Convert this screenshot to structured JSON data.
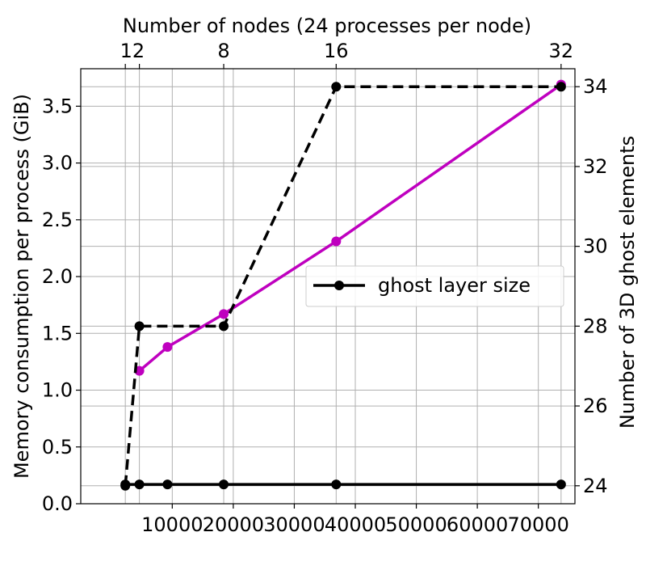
{
  "chart_data": {
    "type": "line",
    "xlabel": "",
    "ylabel_left": "Memory consumption per process (GiB)",
    "ylabel_right": "Number of 3D ghost elements",
    "xlabel_top": "Number of nodes (24 processes per node)",
    "xlim": [
      -5000,
      76000
    ],
    "ylim_left": [
      0.0,
      3.83
    ],
    "ylim_right": [
      23.55,
      34.45
    ],
    "x_ticks": [
      10000,
      20000,
      30000,
      40000,
      50000,
      60000,
      70000
    ],
    "x_tick_labels": [
      "10000",
      "20000",
      "30000",
      "40000",
      "50000",
      "60000",
      "70000"
    ],
    "y_left_ticks": [
      0.0,
      0.5,
      1.0,
      1.5,
      2.0,
      2.5,
      3.0,
      3.5
    ],
    "y_left_tick_labels": [
      "0.0",
      "0.5",
      "1.0",
      "1.5",
      "2.0",
      "2.5",
      "3.0",
      "3.5"
    ],
    "y_right_ticks": [
      24,
      26,
      28,
      30,
      32,
      34
    ],
    "y_right_tick_labels": [
      "24",
      "26",
      "28",
      "30",
      "32",
      "34"
    ],
    "top_ticks": [
      2304,
      4608,
      18432,
      36864,
      73728
    ],
    "top_tick_labels": [
      "1",
      "2",
      "8",
      "16",
      "32"
    ],
    "top_ticks_drawn_once": [
      4608
    ],
    "top_tick_label_overlap": "12",
    "grid": true,
    "legend": {
      "position": "center-right",
      "entries": [
        "ghost layer size"
      ]
    },
    "series": [
      {
        "axis": "left",
        "color": "#bf00bf",
        "style": "solid",
        "x": [
          4608,
          9216,
          18432,
          36864,
          73728
        ],
        "y": [
          1.17,
          1.38,
          1.67,
          2.31,
          3.69
        ]
      },
      {
        "axis": "left",
        "color": "#000000",
        "style": "solid",
        "x": [
          2304,
          4608,
          9216,
          18432,
          36864,
          73728
        ],
        "y": [
          0.17,
          0.17,
          0.17,
          0.17,
          0.17,
          0.17
        ]
      },
      {
        "axis": "right",
        "color": "#000000",
        "style": "dashed",
        "x": [
          2304,
          4608,
          18432,
          36864,
          73728
        ],
        "y": [
          24,
          28,
          28,
          34,
          34
        ]
      }
    ]
  }
}
